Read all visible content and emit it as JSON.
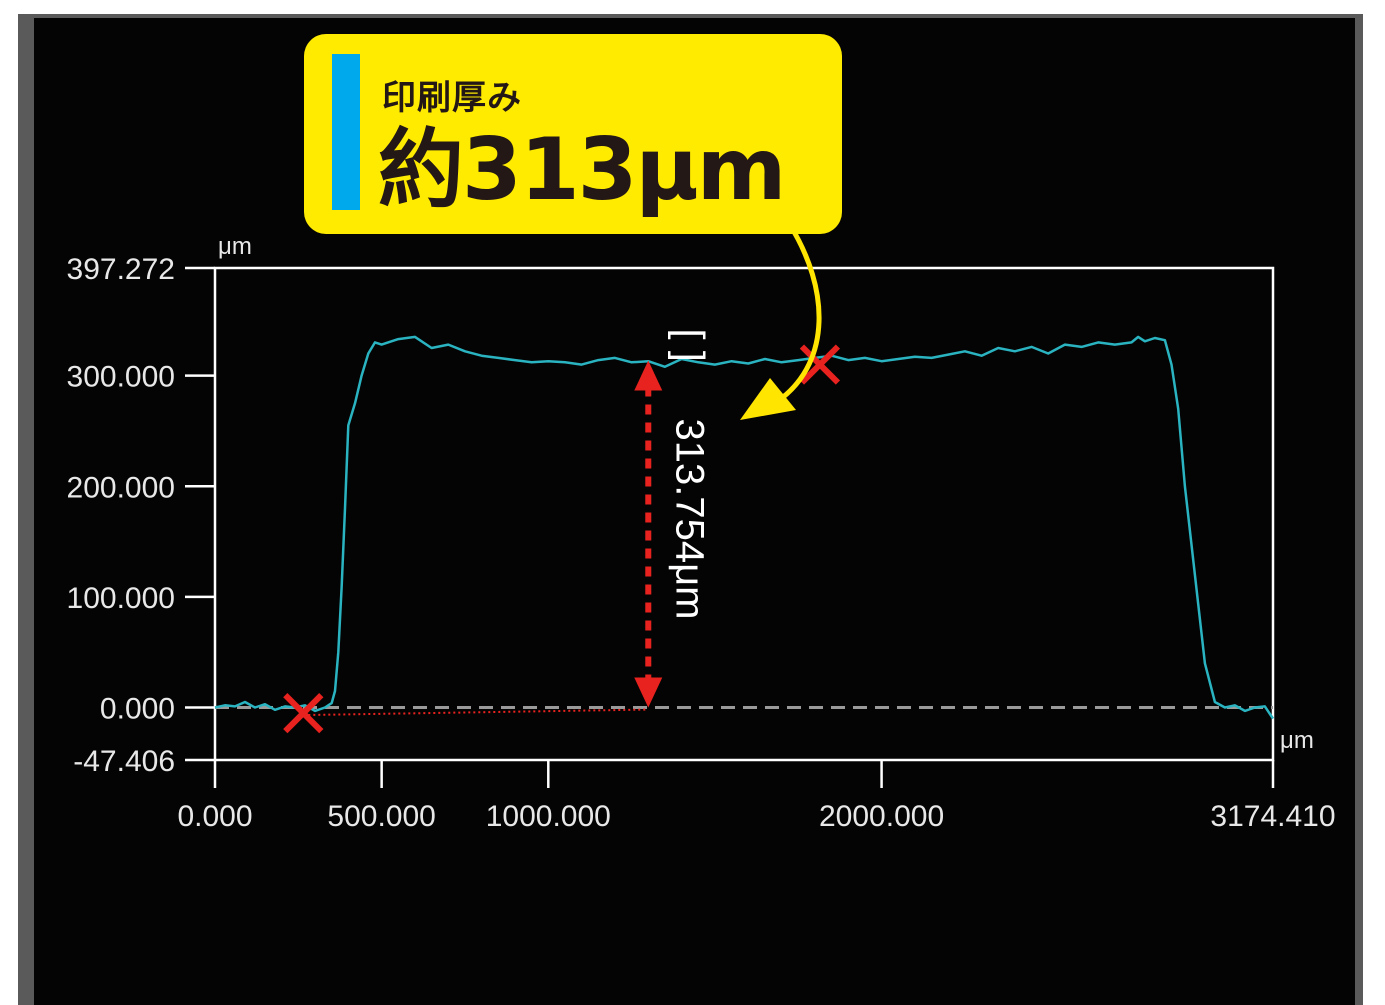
{
  "callout": {
    "label": "印刷厚み",
    "value": "約313μm"
  },
  "measurement": {
    "text": "313.754μm",
    "bracket": "[ ]",
    "value": 313.754
  },
  "colors": {
    "trace": "#2ab3c0",
    "marker": "#e8221e",
    "callout_bg": "#ffeb00",
    "callout_bar": "#00a8ec",
    "arrow": "#ffe500"
  },
  "chart_data": {
    "type": "line",
    "x_unit": "μm",
    "y_unit": "μm",
    "xlim": [
      0.0,
      3174.41
    ],
    "ylim": [
      -47.406,
      397.272
    ],
    "x_ticks": [
      {
        "value": 0.0,
        "label": "0.000"
      },
      {
        "value": 500.0,
        "label": "500.000"
      },
      {
        "value": 1000.0,
        "label": "1000.000"
      },
      {
        "value": 2000.0,
        "label": "2000.000"
      },
      {
        "value": 3174.41,
        "label": "3174.410"
      }
    ],
    "y_ticks": [
      {
        "value": 397.272,
        "label": "397.272"
      },
      {
        "value": 300.0,
        "label": "300.000"
      },
      {
        "value": 200.0,
        "label": "200.000"
      },
      {
        "value": 100.0,
        "label": "100.000"
      },
      {
        "value": 0.0,
        "label": "0.000"
      },
      {
        "value": -47.406,
        "label": "-47.406"
      }
    ],
    "reference_line": 0.0,
    "markers": [
      {
        "x": 265,
        "y": -5
      },
      {
        "x": 1815,
        "y": 310
      }
    ],
    "measure_x": 1300,
    "series": [
      {
        "x": [
          0,
          30,
          60,
          90,
          120,
          150,
          180,
          210,
          240,
          270,
          300,
          330,
          350,
          360,
          370,
          380,
          390,
          400,
          420,
          440,
          460,
          480,
          500,
          550,
          600,
          650,
          700,
          750,
          800,
          850,
          900,
          950,
          1000,
          1050,
          1100,
          1150,
          1200,
          1250,
          1300,
          1350,
          1400,
          1450,
          1500,
          1550,
          1600,
          1650,
          1700,
          1750,
          1800,
          1850,
          1900,
          1950,
          2000,
          2050,
          2100,
          2150,
          2200,
          2250,
          2300,
          2350,
          2400,
          2450,
          2500,
          2550,
          2600,
          2650,
          2700,
          2750,
          2770,
          2790,
          2820,
          2850,
          2870,
          2890,
          2910,
          2940,
          2970,
          3000,
          3030,
          3060,
          3090,
          3120,
          3150,
          3174.41
        ],
        "y": [
          0,
          2,
          1,
          5,
          0,
          3,
          -2,
          1,
          0,
          2,
          -3,
          0,
          4,
          15,
          50,
          110,
          180,
          255,
          275,
          300,
          320,
          330,
          328,
          333,
          335,
          325,
          328,
          322,
          318,
          316,
          314,
          312,
          313,
          312,
          310,
          314,
          316,
          312,
          313,
          308,
          315,
          312,
          310,
          313,
          311,
          315,
          312,
          314,
          316,
          318,
          314,
          316,
          313,
          315,
          317,
          316,
          319,
          322,
          318,
          325,
          322,
          326,
          320,
          328,
          326,
          330,
          328,
          330,
          335,
          331,
          334,
          332,
          310,
          270,
          200,
          120,
          40,
          5,
          0,
          2,
          -3,
          0,
          1,
          -10
        ]
      }
    ]
  }
}
